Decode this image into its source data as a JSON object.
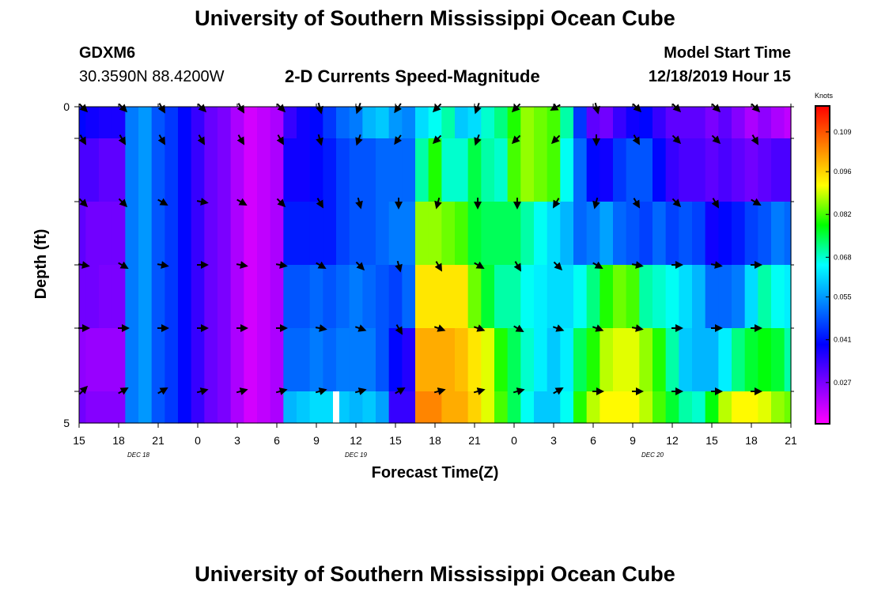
{
  "header": {
    "title": "University of Southern Mississippi Ocean Cube",
    "station_id": "GDXM6",
    "station_coords": "30.3590N 88.4200W",
    "plot_title": "2-D Currents Speed-Magnitude",
    "model_start_label": "Model Start Time",
    "model_start_value": "12/18/2019 Hour 15"
  },
  "footer": {
    "title": "University of Southern Mississippi Ocean Cube"
  },
  "chart_data": {
    "type": "heatmap",
    "title": "2-D Currents Speed-Magnitude",
    "xlabel": "Forecast Time(Z)",
    "ylabel": "Depth (ft)",
    "x_hours": [
      0,
      3,
      6,
      9,
      12,
      15,
      18,
      21,
      24,
      27,
      30,
      33,
      36,
      39,
      42,
      45,
      48,
      51,
      54
    ],
    "x_tick_labels": [
      "15",
      "18",
      "21",
      "0",
      "3",
      "6",
      "9",
      "12",
      "15",
      "18",
      "21",
      "0",
      "3",
      "6",
      "9",
      "12",
      "15",
      "18",
      "21"
    ],
    "date_labels": [
      {
        "label": "DEC 18",
        "hour": 4.5
      },
      {
        "label": "DEC 19",
        "hour": 21
      },
      {
        "label": "DEC 20",
        "hour": 43.5
      }
    ],
    "y_tick_labels": [
      "0",
      "5"
    ],
    "ylim": [
      0,
      5
    ],
    "depth_bands": 5,
    "colorbar": {
      "unit": "Knots",
      "tick_values": [
        "0.109",
        "0.096",
        "0.082",
        "0.068",
        "0.055",
        "0.041",
        "0.027"
      ],
      "min": 0.0135,
      "max": 0.1175,
      "stops": [
        "#ff00ff",
        "#8000ff",
        "#0000ff",
        "#0080ff",
        "#00ffff",
        "#00ff00",
        "#ffff00",
        "#ff8000",
        "#ff0000"
      ]
    },
    "time_columns_hours": [
      0,
      1,
      2,
      3,
      4,
      5,
      6,
      7,
      8,
      9,
      10,
      11,
      12,
      13,
      14,
      15,
      16,
      17,
      18,
      19,
      20,
      21,
      22,
      23,
      24,
      25,
      26,
      27,
      28,
      29,
      30,
      31,
      32,
      33,
      34,
      35,
      36,
      37,
      38,
      39,
      40,
      41,
      42,
      43,
      44,
      45,
      46,
      47,
      48,
      49,
      50,
      51,
      52,
      53,
      54
    ],
    "speed_knots": [
      [
        0.04,
        0.038,
        0.037,
        0.037,
        0.052,
        0.055,
        0.048,
        0.045,
        0.04,
        0.034,
        0.029,
        0.027,
        0.022,
        0.018,
        0.02,
        0.022,
        0.034,
        0.038,
        0.04,
        0.045,
        0.05,
        0.052,
        0.058,
        0.06,
        0.055,
        0.053,
        0.062,
        0.066,
        0.07,
        0.06,
        0.062,
        0.068,
        0.072,
        0.08,
        0.086,
        0.084,
        0.082,
        0.07,
        0.045,
        0.03,
        0.028,
        0.034,
        0.038,
        0.04,
        0.034,
        0.03,
        0.03,
        0.03,
        0.027,
        0.03,
        0.026,
        0.022,
        0.025,
        0.022,
        0.02
      ],
      [
        0.032,
        0.032,
        0.03,
        0.03,
        0.052,
        0.055,
        0.048,
        0.045,
        0.04,
        0.034,
        0.029,
        0.027,
        0.022,
        0.018,
        0.02,
        0.022,
        0.038,
        0.038,
        0.04,
        0.042,
        0.046,
        0.048,
        0.048,
        0.05,
        0.05,
        0.05,
        0.07,
        0.08,
        0.068,
        0.068,
        0.075,
        0.07,
        0.068,
        0.082,
        0.086,
        0.084,
        0.082,
        0.066,
        0.05,
        0.04,
        0.038,
        0.045,
        0.048,
        0.048,
        0.04,
        0.034,
        0.032,
        0.032,
        0.03,
        0.032,
        0.03,
        0.028,
        0.03,
        0.032,
        0.032
      ],
      [
        0.03,
        0.028,
        0.028,
        0.028,
        0.052,
        0.055,
        0.048,
        0.045,
        0.04,
        0.034,
        0.029,
        0.027,
        0.022,
        0.018,
        0.02,
        0.022,
        0.042,
        0.042,
        0.042,
        0.042,
        0.046,
        0.048,
        0.048,
        0.05,
        0.052,
        0.052,
        0.086,
        0.086,
        0.084,
        0.082,
        0.076,
        0.074,
        0.074,
        0.074,
        0.07,
        0.066,
        0.062,
        0.058,
        0.05,
        0.052,
        0.056,
        0.05,
        0.048,
        0.046,
        0.05,
        0.046,
        0.048,
        0.046,
        0.038,
        0.04,
        0.042,
        0.046,
        0.048,
        0.052,
        0.05
      ],
      [
        0.028,
        0.028,
        0.027,
        0.027,
        0.052,
        0.055,
        0.048,
        0.045,
        0.04,
        0.034,
        0.029,
        0.027,
        0.022,
        0.018,
        0.02,
        0.022,
        0.048,
        0.048,
        0.05,
        0.048,
        0.05,
        0.052,
        0.05,
        0.048,
        0.046,
        0.05,
        0.094,
        0.094,
        0.094,
        0.094,
        0.084,
        0.076,
        0.07,
        0.07,
        0.066,
        0.064,
        0.062,
        0.062,
        0.066,
        0.072,
        0.08,
        0.084,
        0.082,
        0.07,
        0.068,
        0.066,
        0.062,
        0.058,
        0.05,
        0.05,
        0.052,
        0.062,
        0.07,
        0.066,
        0.064
      ],
      [
        0.025,
        0.024,
        0.024,
        0.024,
        0.052,
        0.055,
        0.048,
        0.045,
        0.04,
        0.034,
        0.029,
        0.027,
        0.022,
        0.018,
        0.02,
        0.022,
        0.05,
        0.05,
        0.052,
        0.05,
        0.052,
        0.052,
        0.052,
        0.048,
        0.04,
        0.036,
        0.1,
        0.1,
        0.1,
        0.098,
        0.094,
        0.09,
        0.08,
        0.074,
        0.068,
        0.064,
        0.06,
        0.064,
        0.074,
        0.08,
        0.088,
        0.09,
        0.09,
        0.086,
        0.08,
        0.07,
        0.06,
        0.058,
        0.058,
        0.064,
        0.072,
        0.076,
        0.078,
        0.076,
        0.07
      ],
      [
        0.028,
        0.026,
        0.026,
        0.026,
        0.052,
        0.055,
        0.048,
        0.045,
        0.04,
        0.034,
        0.029,
        0.027,
        0.022,
        0.018,
        0.02,
        0.022,
        0.058,
        0.06,
        0.062,
        0.062,
        0.06,
        0.058,
        0.06,
        0.056,
        0.034,
        0.034,
        0.104,
        0.104,
        0.1,
        0.1,
        0.096,
        0.09,
        0.082,
        0.074,
        0.066,
        0.06,
        0.06,
        0.066,
        0.08,
        0.088,
        0.092,
        0.092,
        0.092,
        0.088,
        0.082,
        0.076,
        0.07,
        0.068,
        0.078,
        0.088,
        0.092,
        0.092,
        0.09,
        0.086,
        0.084
      ]
    ],
    "arrow_columns_hours": [
      0,
      3,
      6,
      9,
      12,
      15,
      18,
      21,
      24,
      27,
      30,
      33,
      36,
      39,
      42,
      45,
      48,
      51
    ],
    "arrow_depth_rows": [
      0,
      1,
      2,
      3,
      4,
      5
    ],
    "arrow_direction_deg": [
      [
        135,
        135,
        150,
        135,
        150,
        135,
        165,
        200,
        215,
        225,
        200,
        225,
        240,
        165,
        135,
        135,
        135,
        135
      ],
      [
        150,
        150,
        150,
        150,
        150,
        150,
        165,
        200,
        215,
        225,
        200,
        225,
        225,
        180,
        150,
        135,
        135,
        150
      ],
      [
        135,
        135,
        120,
        100,
        120,
        135,
        150,
        165,
        180,
        195,
        180,
        180,
        210,
        195,
        150,
        135,
        150,
        120
      ],
      [
        100,
        120,
        100,
        90,
        100,
        100,
        120,
        135,
        165,
        150,
        120,
        150,
        135,
        120,
        100,
        90,
        100,
        90
      ],
      [
        90,
        90,
        90,
        90,
        90,
        90,
        100,
        110,
        150,
        110,
        110,
        120,
        110,
        110,
        100,
        90,
        90,
        90
      ],
      [
        45,
        60,
        60,
        75,
        75,
        75,
        75,
        75,
        60,
        75,
        75,
        75,
        60,
        90,
        90,
        90,
        90,
        90
      ]
    ],
    "marker_hour": 19.5
  }
}
